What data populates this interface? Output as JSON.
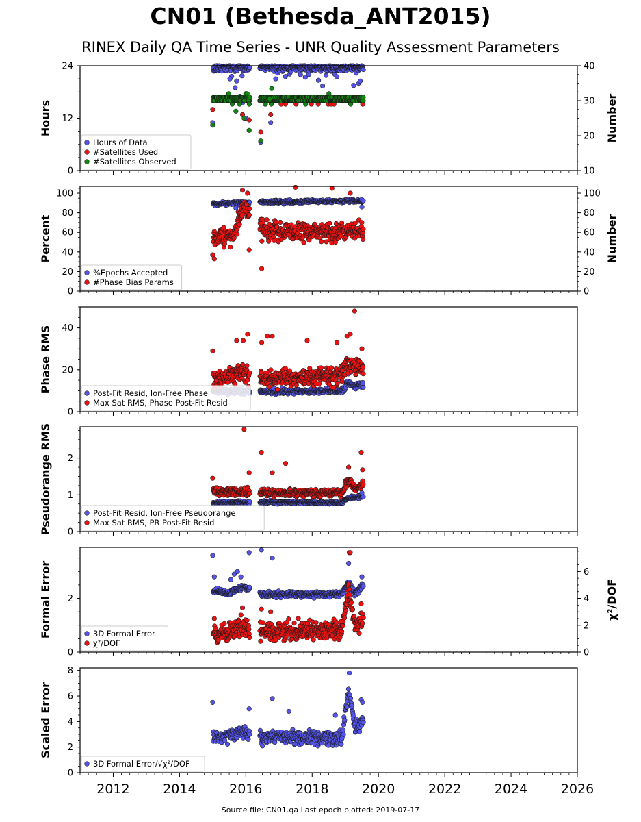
{
  "title": "CN01 (Bethesda_ANT2015)",
  "subtitle": "RINEX Daily QA Time Series - UNR Quality Assessment Parameters",
  "footer": "Source file: CN01.qa Last epoch plotted: 2019-07-17",
  "colors": {
    "blue": "#5555ee",
    "red": "#ee1111",
    "green": "#118811",
    "edge": "#1a1a1a"
  },
  "chart_data": [
    {
      "type": "scatter",
      "ylabel": "Hours",
      "ylim": [
        0,
        24
      ],
      "yticks": [
        0,
        12,
        24
      ],
      "y2label": "Number",
      "y2lim": [
        10,
        40
      ],
      "y2ticks": [
        10,
        20,
        30,
        40
      ],
      "xlim": [
        2011.0,
        2026.0
      ],
      "legend_position": "lower-left",
      "series": [
        {
          "name": "Hours of Data",
          "color": "blue",
          "axis": "left",
          "mode": "hours",
          "anchors": [
            [
              2015.02,
              10.5
            ],
            [
              2015.5,
              24
            ],
            [
              2016.5,
              24
            ],
            [
              2019.55,
              24
            ]
          ],
          "spread": 1.2,
          "outliers": [
            [
              2015.0,
              11.0
            ],
            [
              2015.52,
              21.0
            ],
            [
              2015.68,
              19.0
            ],
            [
              2015.82,
              17.0
            ],
            [
              2015.9,
              15.5
            ],
            [
              2016.0,
              12.0
            ],
            [
              2016.45,
              6.5
            ],
            [
              2016.75,
              11.0
            ],
            [
              2016.9,
              21.0
            ],
            [
              2018.75,
              21.5
            ],
            [
              2019.25,
              19.5
            ],
            [
              2019.4,
              20.0
            ],
            [
              2019.45,
              20.5
            ]
          ]
        },
        {
          "name": "#Satellites Used",
          "color": "red",
          "axis": "right",
          "mode": "sats",
          "anchors": [
            [
              2015.02,
              30
            ],
            [
              2019.55,
              30
            ]
          ],
          "spread": 0.6,
          "outliers": [
            [
              2015.0,
              27.5
            ],
            [
              2015.9,
              26.0
            ],
            [
              2016.1,
              24.5
            ],
            [
              2016.45,
              21.0
            ],
            [
              2016.75,
              26.0
            ]
          ]
        },
        {
          "name": "#Satellites Observed",
          "color": "green",
          "axis": "right",
          "mode": "sats",
          "anchors": [
            [
              2015.02,
              30.5
            ],
            [
              2019.55,
              30.5
            ]
          ],
          "spread": 0.9,
          "outliers": [
            [
              2015.0,
              23.0
            ],
            [
              2015.7,
              27.0
            ],
            [
              2015.95,
              25.0
            ],
            [
              2016.1,
              21.5
            ],
            [
              2016.45,
              18.5
            ],
            [
              2016.72,
              30.5
            ],
            [
              2016.78,
              33.5
            ]
          ]
        }
      ]
    },
    {
      "type": "scatter",
      "ylabel": "Percent",
      "ylim": [
        0,
        107
      ],
      "yticks": [
        0,
        20,
        40,
        60,
        80,
        100
      ],
      "y2label": "Number",
      "y2lim": [
        0,
        107
      ],
      "y2ticks": [
        0,
        20,
        40,
        60,
        80,
        100
      ],
      "xlim": [
        2011.0,
        2026.0
      ],
      "legend_position": "lower-left",
      "series": [
        {
          "name": "%Epochs Accepted",
          "color": "blue",
          "axis": "left",
          "anchors": [
            [
              2015.02,
              89
            ],
            [
              2016.0,
              90
            ],
            [
              2016.5,
              91
            ],
            [
              2019.55,
              92
            ]
          ],
          "spread": 1.6,
          "outliers": [
            [
              2015.7,
              85.0
            ],
            [
              2019.5,
              86.0
            ]
          ]
        },
        {
          "name": "#Phase Bias Params",
          "color": "red",
          "axis": "right",
          "anchors": [
            [
              2015.02,
              55
            ],
            [
              2015.6,
              57
            ],
            [
              2015.95,
              85
            ],
            [
              2016.2,
              80
            ],
            [
              2016.5,
              62
            ],
            [
              2019.55,
              60
            ]
          ],
          "spread": 9,
          "outliers": [
            [
              2015.0,
              37.0
            ],
            [
              2015.05,
              33.0
            ],
            [
              2015.9,
              103.0
            ],
            [
              2016.05,
              100.0
            ],
            [
              2016.1,
              42.0
            ],
            [
              2016.48,
              23.0
            ],
            [
              2017.5,
              106.0
            ],
            [
              2018.6,
              105.0
            ],
            [
              2019.15,
              100.0
            ]
          ]
        }
      ]
    },
    {
      "type": "scatter",
      "ylabel": "Phase RMS",
      "ylim": [
        0,
        50
      ],
      "yticks": [
        0,
        20,
        40
      ],
      "xlim": [
        2011.0,
        2026.0
      ],
      "legend_position": "lower-left",
      "series": [
        {
          "name": "Post-Fit Resid, Ion-Free Phase",
          "color": "blue",
          "axis": "left",
          "anchors": [
            [
              2015.02,
              10
            ],
            [
              2016.5,
              9.5
            ],
            [
              2018.9,
              10
            ],
            [
              2019.1,
              14
            ],
            [
              2019.3,
              12
            ],
            [
              2019.55,
              13
            ]
          ],
          "spread": 1.2,
          "outliers": [
            [
              2019.1,
              18.0
            ],
            [
              2019.15,
              21.0
            ]
          ]
        },
        {
          "name": "Max Sat RMS, Phase Post-Fit Resid",
          "color": "red",
          "axis": "left",
          "anchors": [
            [
              2015.02,
              15
            ],
            [
              2015.8,
              18
            ],
            [
              2016.5,
              16
            ],
            [
              2018.9,
              17
            ],
            [
              2019.1,
              24
            ],
            [
              2019.55,
              20
            ]
          ],
          "spread": 4,
          "outliers": [
            [
              2015.0,
              29.0
            ],
            [
              2015.72,
              34.0
            ],
            [
              2015.92,
              34.0
            ],
            [
              2016.05,
              37.0
            ],
            [
              2016.48,
              33.0
            ],
            [
              2016.65,
              36.0
            ],
            [
              2016.8,
              36.0
            ],
            [
              2017.85,
              34.0
            ],
            [
              2018.75,
              33.0
            ],
            [
              2019.05,
              36.0
            ],
            [
              2019.15,
              37.0
            ],
            [
              2019.28,
              48.0
            ],
            [
              2019.5,
              30.0
            ]
          ]
        }
      ]
    },
    {
      "type": "scatter",
      "ylabel": "Pseudorange RMS",
      "ylim": [
        0,
        2.85
      ],
      "yticks": [
        0,
        1,
        2
      ],
      "xlim": [
        2011.0,
        2026.0
      ],
      "legend_position": "lower-left",
      "series": [
        {
          "name": "Post-Fit Resid, Ion-Free Pseudorange",
          "color": "blue",
          "axis": "left",
          "anchors": [
            [
              2015.02,
              0.78
            ],
            [
              2016.5,
              0.8
            ],
            [
              2018.9,
              0.78
            ],
            [
              2019.1,
              0.92
            ],
            [
              2019.55,
              0.95
            ]
          ],
          "spread": 0.04,
          "outliers": [
            [
              2019.5,
              1.05
            ]
          ]
        },
        {
          "name": "Max Sat RMS, PR Post-Fit Resid",
          "color": "red",
          "axis": "left",
          "anchors": [
            [
              2015.02,
              1.1
            ],
            [
              2016.5,
              1.05
            ],
            [
              2018.9,
              1.05
            ],
            [
              2019.1,
              1.4
            ],
            [
              2019.3,
              1.15
            ],
            [
              2019.55,
              1.3
            ]
          ],
          "spread": 0.1,
          "outliers": [
            [
              2015.0,
              1.45
            ],
            [
              2015.95,
              2.78
            ],
            [
              2016.1,
              1.6
            ],
            [
              2016.47,
              2.15
            ],
            [
              2016.8,
              1.6
            ],
            [
              2017.2,
              1.85
            ],
            [
              2019.1,
              1.75
            ],
            [
              2019.48,
              2.15
            ],
            [
              2019.52,
              1.68
            ]
          ]
        }
      ]
    },
    {
      "type": "scatter",
      "ylabel": "Formal Error",
      "ylim": [
        0,
        3.9
      ],
      "yticks": [
        0,
        2
      ],
      "y2label": "χ²/DOF",
      "y2lim": [
        0,
        7.8
      ],
      "y2ticks": [
        0,
        2,
        4,
        6
      ],
      "xlim": [
        2011.0,
        2026.0
      ],
      "legend_position": "lower-left",
      "series": [
        {
          "name": "3D Formal Error",
          "color": "blue",
          "axis": "left",
          "anchors": [
            [
              2015.02,
              2.3
            ],
            [
              2015.5,
              2.2
            ],
            [
              2015.9,
              2.45
            ],
            [
              2016.5,
              2.15
            ],
            [
              2018.9,
              2.15
            ],
            [
              2019.1,
              2.6
            ],
            [
              2019.3,
              2.15
            ],
            [
              2019.55,
              2.5
            ]
          ],
          "spread": 0.1,
          "outliers": [
            [
              2015.0,
              3.6
            ],
            [
              2015.05,
              2.8
            ],
            [
              2015.55,
              2.7
            ],
            [
              2015.65,
              2.9
            ],
            [
              2015.75,
              3.0
            ],
            [
              2015.85,
              2.8
            ],
            [
              2016.1,
              3.7
            ],
            [
              2016.47,
              3.8
            ],
            [
              2016.8,
              3.5
            ],
            [
              2019.1,
              3.3
            ],
            [
              2019.5,
              2.8
            ]
          ]
        },
        {
          "name": "χ²/DOF",
          "color": "red",
          "axis": "right",
          "anchors": [
            [
              2015.02,
              1.2
            ],
            [
              2015.8,
              1.8
            ],
            [
              2016.5,
              1.6
            ],
            [
              2018.9,
              1.6
            ],
            [
              2019.1,
              4.5
            ],
            [
              2019.3,
              2.0
            ],
            [
              2019.55,
              2.5
            ]
          ],
          "spread": 0.7,
          "outliers": [
            [
              2015.05,
              2.5
            ],
            [
              2015.9,
              3.3
            ],
            [
              2016.47,
              3.2
            ],
            [
              2016.75,
              3.0
            ],
            [
              2019.12,
              7.4
            ],
            [
              2019.15,
              7.4
            ],
            [
              2019.48,
              3.6
            ]
          ]
        }
      ]
    },
    {
      "type": "scatter",
      "ylabel": "Scaled Error",
      "ylim": [
        0,
        8.2
      ],
      "yticks": [
        0,
        2,
        4,
        6,
        8
      ],
      "xlim": [
        2011.0,
        2026.0
      ],
      "xticks": [
        2012,
        2014,
        2016,
        2018,
        2020,
        2022,
        2024,
        2026
      ],
      "legend_position": "lower-left",
      "series": [
        {
          "name": "3D Formal Error/√χ²/DOF",
          "color": "blue",
          "axis": "left",
          "anchors": [
            [
              2015.02,
              2.6
            ],
            [
              2015.9,
              3.2
            ],
            [
              2016.5,
              2.8
            ],
            [
              2018.9,
              2.7
            ],
            [
              2019.1,
              6.5
            ],
            [
              2019.3,
              3.3
            ],
            [
              2019.55,
              4.3
            ]
          ],
          "spread": 0.55,
          "outliers": [
            [
              2015.0,
              5.5
            ],
            [
              2016.1,
              5.0
            ],
            [
              2016.8,
              5.8
            ],
            [
              2017.3,
              4.8
            ],
            [
              2018.7,
              4.5
            ],
            [
              2019.12,
              7.8
            ],
            [
              2019.48,
              5.7
            ],
            [
              2019.52,
              5.5
            ]
          ]
        }
      ]
    }
  ]
}
